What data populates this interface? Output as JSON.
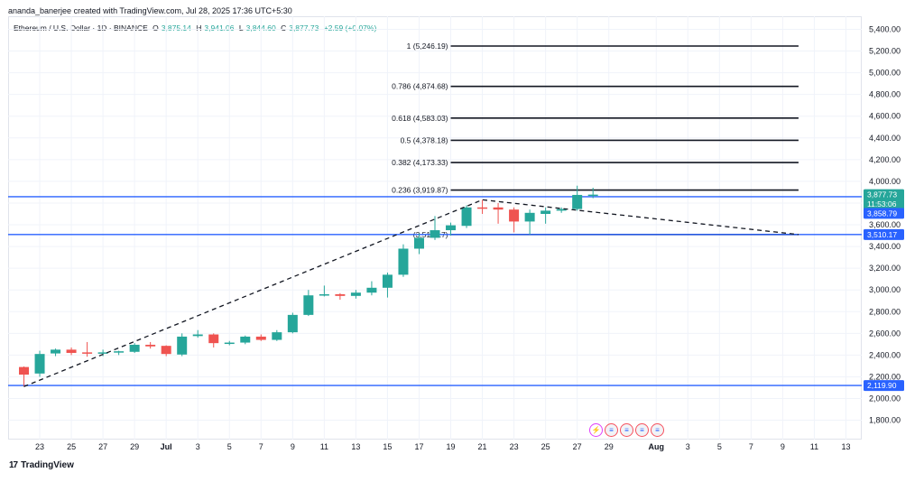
{
  "header": {
    "author_line": "ananda_banerjee created with TradingView.com, Jul 28, 2025 17:36 UTC+5:30"
  },
  "symbol": {
    "name": "Ethereum / U.S. Dollar · 1D · BINANCE",
    "open_label": "O",
    "open": "3,875.14",
    "high_label": "H",
    "high": "3,941.06",
    "low_label": "L",
    "low": "3,844.60",
    "close_label": "C",
    "close": "3,877.73",
    "change": "+2.59 (+0.07%)"
  },
  "logo": {
    "text": "TradingView",
    "mark": "17"
  },
  "events": [
    {
      "icon": "lightning-icon",
      "glyph": "⚡"
    },
    {
      "icon": "us-flag-icon",
      "glyph": "≡"
    },
    {
      "icon": "us-flag-icon",
      "glyph": "≡"
    },
    {
      "icon": "us-flag-icon",
      "glyph": "≡"
    },
    {
      "icon": "us-flag-icon",
      "glyph": "≡"
    }
  ],
  "colors": {
    "up": "#26a69a",
    "down": "#ef5350",
    "h_line": "#2962ff",
    "fib": "#131722",
    "price_tag": "#2962ff",
    "last_tag": "#26a69a",
    "grid": "#f0f3fa"
  },
  "chart_data": {
    "type": "candlestick",
    "title": "Ethereum / U.S. Dollar · 1D · BINANCE",
    "grid": true,
    "y_axis_position": "right",
    "ylim": [
      1650,
      5500
    ],
    "y_ticks": [
      1800,
      2000,
      2200,
      2400,
      2600,
      2800,
      3000,
      3200,
      3400,
      3600,
      3800,
      4000,
      4200,
      4400,
      4600,
      4800,
      5000,
      5200,
      5400
    ],
    "y_tick_labels": [
      "1,800.00",
      "2,000.00",
      "2,200.00",
      "2,400.00",
      "2,600.00",
      "2,800.00",
      "3,000.00",
      "3,200.00",
      "3,400.00",
      "3,600.00",
      "3,800.00",
      "4,000.00",
      "4,200.00",
      "4,400.00",
      "4,600.00",
      "4,800.00",
      "5,000.00",
      "5,200.00",
      "5,400.00"
    ],
    "x_ticks": [
      {
        "date": "2025-06-23",
        "label": "23"
      },
      {
        "date": "2025-06-25",
        "label": "25"
      },
      {
        "date": "2025-06-27",
        "label": "27"
      },
      {
        "date": "2025-06-29",
        "label": "29"
      },
      {
        "date": "2025-07-01",
        "label": "Jul"
      },
      {
        "date": "2025-07-03",
        "label": "3"
      },
      {
        "date": "2025-07-05",
        "label": "5"
      },
      {
        "date": "2025-07-07",
        "label": "7"
      },
      {
        "date": "2025-07-09",
        "label": "9"
      },
      {
        "date": "2025-07-11",
        "label": "11"
      },
      {
        "date": "2025-07-13",
        "label": "13"
      },
      {
        "date": "2025-07-15",
        "label": "15"
      },
      {
        "date": "2025-07-17",
        "label": "17"
      },
      {
        "date": "2025-07-19",
        "label": "19"
      },
      {
        "date": "2025-07-21",
        "label": "21"
      },
      {
        "date": "2025-07-23",
        "label": "23"
      },
      {
        "date": "2025-07-25",
        "label": "25"
      },
      {
        "date": "2025-07-27",
        "label": "27"
      },
      {
        "date": "2025-07-29",
        "label": "29"
      },
      {
        "date": "2025-08-01",
        "label": "Aug"
      },
      {
        "date": "2025-08-03",
        "label": "3"
      },
      {
        "date": "2025-08-05",
        "label": "5"
      },
      {
        "date": "2025-08-07",
        "label": "7"
      },
      {
        "date": "2025-08-09",
        "label": "9"
      },
      {
        "date": "2025-08-11",
        "label": "11"
      },
      {
        "date": "2025-08-13",
        "label": "13"
      }
    ],
    "x_range": [
      "2025-06-21",
      "2025-08-14"
    ],
    "candles": [
      {
        "date": "2025-06-22",
        "o": 2290,
        "h": 2295,
        "l": 2110,
        "c": 2220
      },
      {
        "date": "2025-06-23",
        "o": 2230,
        "h": 2440,
        "l": 2200,
        "c": 2410
      },
      {
        "date": "2025-06-24",
        "o": 2415,
        "h": 2460,
        "l": 2390,
        "c": 2450
      },
      {
        "date": "2025-06-25",
        "o": 2450,
        "h": 2470,
        "l": 2400,
        "c": 2420
      },
      {
        "date": "2025-06-26",
        "o": 2425,
        "h": 2520,
        "l": 2385,
        "c": 2420
      },
      {
        "date": "2025-06-27",
        "o": 2420,
        "h": 2450,
        "l": 2390,
        "c": 2425
      },
      {
        "date": "2025-06-28",
        "o": 2425,
        "h": 2440,
        "l": 2400,
        "c": 2435
      },
      {
        "date": "2025-06-29",
        "o": 2430,
        "h": 2510,
        "l": 2420,
        "c": 2495
      },
      {
        "date": "2025-06-30",
        "o": 2495,
        "h": 2520,
        "l": 2460,
        "c": 2480
      },
      {
        "date": "2025-07-01",
        "o": 2485,
        "h": 2490,
        "l": 2390,
        "c": 2410
      },
      {
        "date": "2025-07-02",
        "o": 2405,
        "h": 2600,
        "l": 2390,
        "c": 2570
      },
      {
        "date": "2025-07-03",
        "o": 2575,
        "h": 2630,
        "l": 2560,
        "c": 2590
      },
      {
        "date": "2025-07-04",
        "o": 2590,
        "h": 2600,
        "l": 2470,
        "c": 2510
      },
      {
        "date": "2025-07-05",
        "o": 2510,
        "h": 2530,
        "l": 2490,
        "c": 2515
      },
      {
        "date": "2025-07-06",
        "o": 2515,
        "h": 2580,
        "l": 2500,
        "c": 2570
      },
      {
        "date": "2025-07-07",
        "o": 2570,
        "h": 2590,
        "l": 2530,
        "c": 2540
      },
      {
        "date": "2025-07-08",
        "o": 2540,
        "h": 2630,
        "l": 2530,
        "c": 2610
      },
      {
        "date": "2025-07-09",
        "o": 2610,
        "h": 2790,
        "l": 2600,
        "c": 2770
      },
      {
        "date": "2025-07-10",
        "o": 2770,
        "h": 3000,
        "l": 2760,
        "c": 2950
      },
      {
        "date": "2025-07-11",
        "o": 2950,
        "h": 3040,
        "l": 2940,
        "c": 2960
      },
      {
        "date": "2025-07-12",
        "o": 2960,
        "h": 2970,
        "l": 2910,
        "c": 2945
      },
      {
        "date": "2025-07-13",
        "o": 2945,
        "h": 3000,
        "l": 2920,
        "c": 2975
      },
      {
        "date": "2025-07-14",
        "o": 2975,
        "h": 3080,
        "l": 2950,
        "c": 3020
      },
      {
        "date": "2025-07-15",
        "o": 3020,
        "h": 3160,
        "l": 2930,
        "c": 3140
      },
      {
        "date": "2025-07-16",
        "o": 3140,
        "h": 3420,
        "l": 3120,
        "c": 3380
      },
      {
        "date": "2025-07-17",
        "o": 3380,
        "h": 3520,
        "l": 3330,
        "c": 3480
      },
      {
        "date": "2025-07-18",
        "o": 3480,
        "h": 3680,
        "l": 3460,
        "c": 3550
      },
      {
        "date": "2025-07-19",
        "o": 3550,
        "h": 3620,
        "l": 3500,
        "c": 3595
      },
      {
        "date": "2025-07-20",
        "o": 3590,
        "h": 3780,
        "l": 3570,
        "c": 3760
      },
      {
        "date": "2025-07-21",
        "o": 3760,
        "h": 3830,
        "l": 3700,
        "c": 3750
      },
      {
        "date": "2025-07-22",
        "o": 3760,
        "h": 3800,
        "l": 3610,
        "c": 3740
      },
      {
        "date": "2025-07-23",
        "o": 3740,
        "h": 3760,
        "l": 3530,
        "c": 3630
      },
      {
        "date": "2025-07-24",
        "o": 3630,
        "h": 3740,
        "l": 3510,
        "c": 3710
      },
      {
        "date": "2025-07-25",
        "o": 3700,
        "h": 3760,
        "l": 3610,
        "c": 3730
      },
      {
        "date": "2025-07-26",
        "o": 3730,
        "h": 3760,
        "l": 3710,
        "c": 3745
      },
      {
        "date": "2025-07-27",
        "o": 3745,
        "h": 3960,
        "l": 3730,
        "c": 3875
      },
      {
        "date": "2025-07-28",
        "o": 3875.14,
        "h": 3941.06,
        "l": 3844.6,
        "c": 3877.73
      }
    ],
    "fib_levels": [
      {
        "label": "1 (5,246.19)",
        "value": 5246.19
      },
      {
        "label": "0.786 (4,874.68)",
        "value": 4874.68
      },
      {
        "label": "0.618 (4,583.03)",
        "value": 4583.03
      },
      {
        "label": "0.5 (4,378.18)",
        "value": 4378.18
      },
      {
        "label": "0.382 (4,173.33)",
        "value": 4173.33
      },
      {
        "label": "0.236 (3,919.87)",
        "value": 3919.87
      },
      {
        "label": "(3,510.17)",
        "value": 3510.17
      }
    ],
    "fib_x_range": [
      "2025-07-19",
      "2025-08-10"
    ],
    "trend_line": [
      {
        "date": "2025-06-22",
        "value": 2110
      },
      {
        "date": "2025-07-21",
        "value": 3830
      },
      {
        "date": "2025-08-10",
        "value": 3510.17
      }
    ],
    "horizontal_lines": [
      3858.79,
      3510.17,
      2119.9
    ],
    "price_tags": [
      {
        "label": "3,877.73",
        "value": 3877.73,
        "kind": "last"
      },
      {
        "label": "11:53:06",
        "value": 3790,
        "kind": "countdown"
      },
      {
        "label": "3,858.79",
        "value": 3705,
        "kind": "line"
      },
      {
        "label": "3,510.17",
        "value": 3510.17,
        "kind": "line"
      },
      {
        "label": "2,119.90",
        "value": 2119.9,
        "kind": "line"
      }
    ]
  }
}
